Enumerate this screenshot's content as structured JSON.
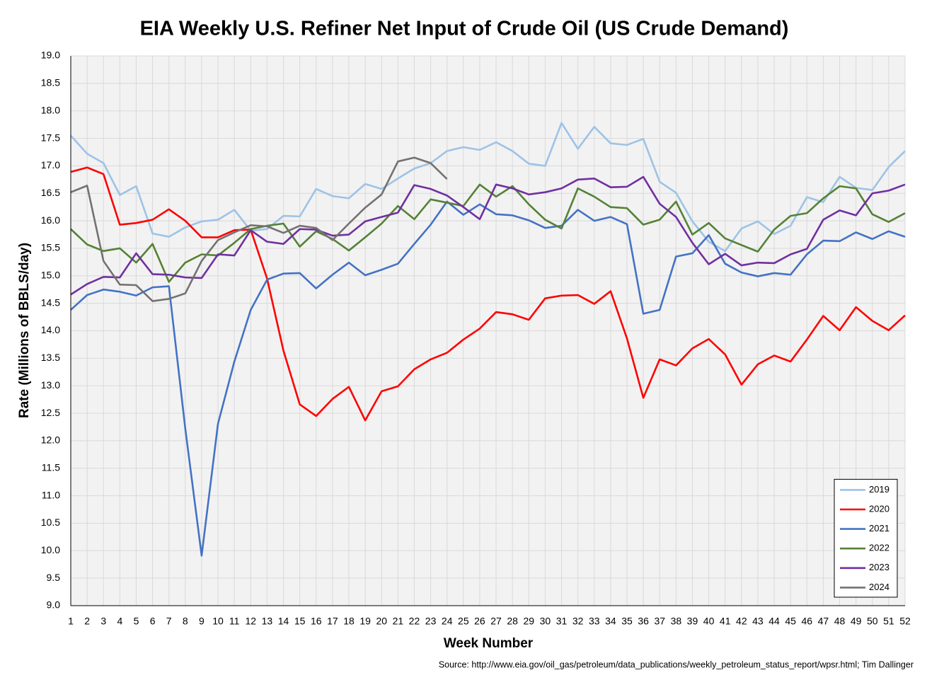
{
  "chart_data": {
    "type": "line",
    "title": "EIA Weekly U.S. Refiner Net Input of Crude Oil (US Crude Demand)",
    "x_label": "Week Number",
    "y_label": "Rate (Millions of BBLS/day)",
    "source": "Source: http://www.eia.gov/oil_gas/petroleum/data_publications/weekly_petroleum_status_report/wpsr.html; Tim Dallinger",
    "x": [
      1,
      2,
      3,
      4,
      5,
      6,
      7,
      8,
      9,
      10,
      11,
      12,
      13,
      14,
      15,
      16,
      17,
      18,
      19,
      20,
      21,
      22,
      23,
      24,
      25,
      26,
      27,
      28,
      29,
      30,
      31,
      32,
      33,
      34,
      35,
      36,
      37,
      38,
      39,
      40,
      41,
      42,
      43,
      44,
      45,
      46,
      47,
      48,
      49,
      50,
      51,
      52
    ],
    "xlim": [
      1,
      52
    ],
    "xticks": [
      1,
      2,
      3,
      4,
      5,
      6,
      7,
      8,
      9,
      10,
      11,
      12,
      13,
      14,
      15,
      16,
      17,
      18,
      19,
      20,
      21,
      22,
      23,
      24,
      25,
      26,
      27,
      28,
      29,
      30,
      31,
      32,
      33,
      34,
      35,
      36,
      37,
      38,
      39,
      40,
      41,
      42,
      43,
      44,
      45,
      46,
      47,
      48,
      49,
      50,
      51,
      52
    ],
    "ylim": [
      9,
      19
    ],
    "yticks": [
      {
        "value": 9,
        "label": "9.0"
      },
      {
        "value": 9.5,
        "label": "9.5"
      },
      {
        "value": 10,
        "label": "10.0"
      },
      {
        "value": 10.5,
        "label": "10.5"
      },
      {
        "value": 11,
        "label": "11.0"
      },
      {
        "value": 11.5,
        "label": "11.5"
      },
      {
        "value": 12,
        "label": "12.0"
      },
      {
        "value": 12.5,
        "label": "12.5"
      },
      {
        "value": 13,
        "label": "13.0"
      },
      {
        "value": 13.5,
        "label": "13.5"
      },
      {
        "value": 14,
        "label": "14.0"
      },
      {
        "value": 14.5,
        "label": "14.5"
      },
      {
        "value": 15,
        "label": "15.0"
      },
      {
        "value": 15.5,
        "label": "15.5"
      },
      {
        "value": 16,
        "label": "16.0"
      },
      {
        "value": 16.5,
        "label": "16.5"
      },
      {
        "value": 17,
        "label": "17.0"
      },
      {
        "value": 17.5,
        "label": "17.5"
      },
      {
        "value": 18,
        "label": "18.0"
      },
      {
        "value": 18.5,
        "label": "18.5"
      },
      {
        "value": 19,
        "label": "19.0"
      }
    ],
    "grid": true,
    "legend": "lower right",
    "series": [
      {
        "name": "2019",
        "color": "#9dc3e6",
        "values": [
          17.55,
          17.22,
          17.05,
          16.47,
          16.63,
          15.77,
          15.71,
          15.88,
          15.99,
          16.02,
          16.2,
          15.82,
          15.85,
          16.09,
          16.08,
          16.58,
          16.45,
          16.41,
          16.67,
          16.58,
          16.77,
          16.95,
          17.05,
          17.27,
          17.34,
          17.29,
          17.43,
          17.27,
          17.04,
          17.0,
          17.78,
          17.31,
          17.71,
          17.41,
          17.38,
          17.49,
          16.71,
          16.51,
          15.99,
          15.62,
          15.45,
          15.86,
          15.99,
          15.76,
          15.91,
          16.43,
          16.34,
          16.8,
          16.6,
          16.56,
          16.98,
          17.27
        ]
      },
      {
        "name": "2020",
        "color": "#ff0000",
        "values": [
          16.89,
          16.97,
          16.85,
          15.93,
          15.96,
          16.02,
          16.21,
          16.0,
          15.7,
          15.7,
          15.83,
          15.84,
          14.95,
          13.64,
          12.66,
          12.45,
          12.76,
          12.98,
          12.37,
          12.9,
          12.99,
          13.3,
          13.48,
          13.6,
          13.84,
          14.04,
          14.34,
          14.3,
          14.2,
          14.59,
          14.64,
          14.65,
          14.49,
          14.72,
          13.86,
          12.78,
          13.48,
          13.37,
          13.68,
          13.85,
          13.57,
          13.02,
          13.39,
          13.55,
          13.44,
          13.84,
          14.27,
          14.01,
          14.43,
          14.18,
          14.01,
          14.28
        ]
      },
      {
        "name": "2021",
        "color": "#4472c4",
        "values": [
          14.38,
          14.65,
          14.75,
          14.71,
          14.64,
          14.79,
          14.81,
          12.22,
          9.91,
          12.31,
          13.44,
          14.38,
          14.93,
          15.04,
          15.05,
          14.77,
          15.02,
          15.24,
          15.01,
          15.11,
          15.22,
          15.58,
          15.93,
          16.35,
          16.11,
          16.3,
          16.12,
          16.1,
          16.01,
          15.87,
          15.91,
          16.2,
          16.0,
          16.07,
          15.94,
          14.31,
          14.38,
          15.35,
          15.41,
          15.74,
          15.22,
          15.06,
          14.99,
          15.05,
          15.02,
          15.39,
          15.64,
          15.63,
          15.79,
          15.67,
          15.81,
          15.71
        ]
      },
      {
        "name": "2022",
        "color": "#548235",
        "values": [
          15.85,
          15.57,
          15.45,
          15.5,
          15.24,
          15.58,
          14.89,
          15.24,
          15.39,
          15.37,
          15.6,
          15.85,
          15.91,
          15.95,
          15.53,
          15.81,
          15.67,
          15.46,
          15.7,
          15.95,
          16.27,
          16.03,
          16.39,
          16.33,
          16.27,
          16.66,
          16.44,
          16.63,
          16.3,
          16.02,
          15.86,
          16.59,
          16.44,
          16.25,
          16.23,
          15.93,
          16.02,
          16.35,
          15.75,
          15.96,
          15.68,
          15.56,
          15.44,
          15.84,
          16.09,
          16.14,
          16.41,
          16.63,
          16.59,
          16.12,
          15.98,
          16.14
        ]
      },
      {
        "name": "2023",
        "color": "#7030a0",
        "values": [
          14.66,
          14.85,
          14.98,
          14.97,
          15.41,
          15.03,
          15.02,
          14.97,
          14.96,
          15.39,
          15.37,
          15.83,
          15.62,
          15.58,
          15.85,
          15.84,
          15.73,
          15.75,
          15.99,
          16.07,
          16.15,
          16.65,
          16.58,
          16.46,
          16.25,
          16.03,
          16.66,
          16.59,
          16.48,
          16.52,
          16.59,
          16.75,
          16.77,
          16.61,
          16.62,
          16.8,
          16.31,
          16.07,
          15.6,
          15.21,
          15.4,
          15.19,
          15.24,
          15.23,
          15.39,
          15.49,
          16.02,
          16.19,
          16.1,
          16.5,
          16.55,
          16.66
        ]
      },
      {
        "name": "2024",
        "color": "#767171",
        "values": [
          16.52,
          16.64,
          15.27,
          14.84,
          14.83,
          14.54,
          14.58,
          14.68,
          15.27,
          15.65,
          15.79,
          15.92,
          15.9,
          15.78,
          15.91,
          15.87,
          15.65,
          15.95,
          16.24,
          16.48,
          17.08,
          17.15,
          17.05,
          16.76,
          null,
          null,
          null,
          null,
          null,
          null,
          null,
          null,
          null,
          null,
          null,
          null,
          null,
          null,
          null,
          null,
          null,
          null,
          null,
          null,
          null,
          null,
          null,
          null,
          null,
          null,
          null,
          null
        ]
      }
    ]
  }
}
